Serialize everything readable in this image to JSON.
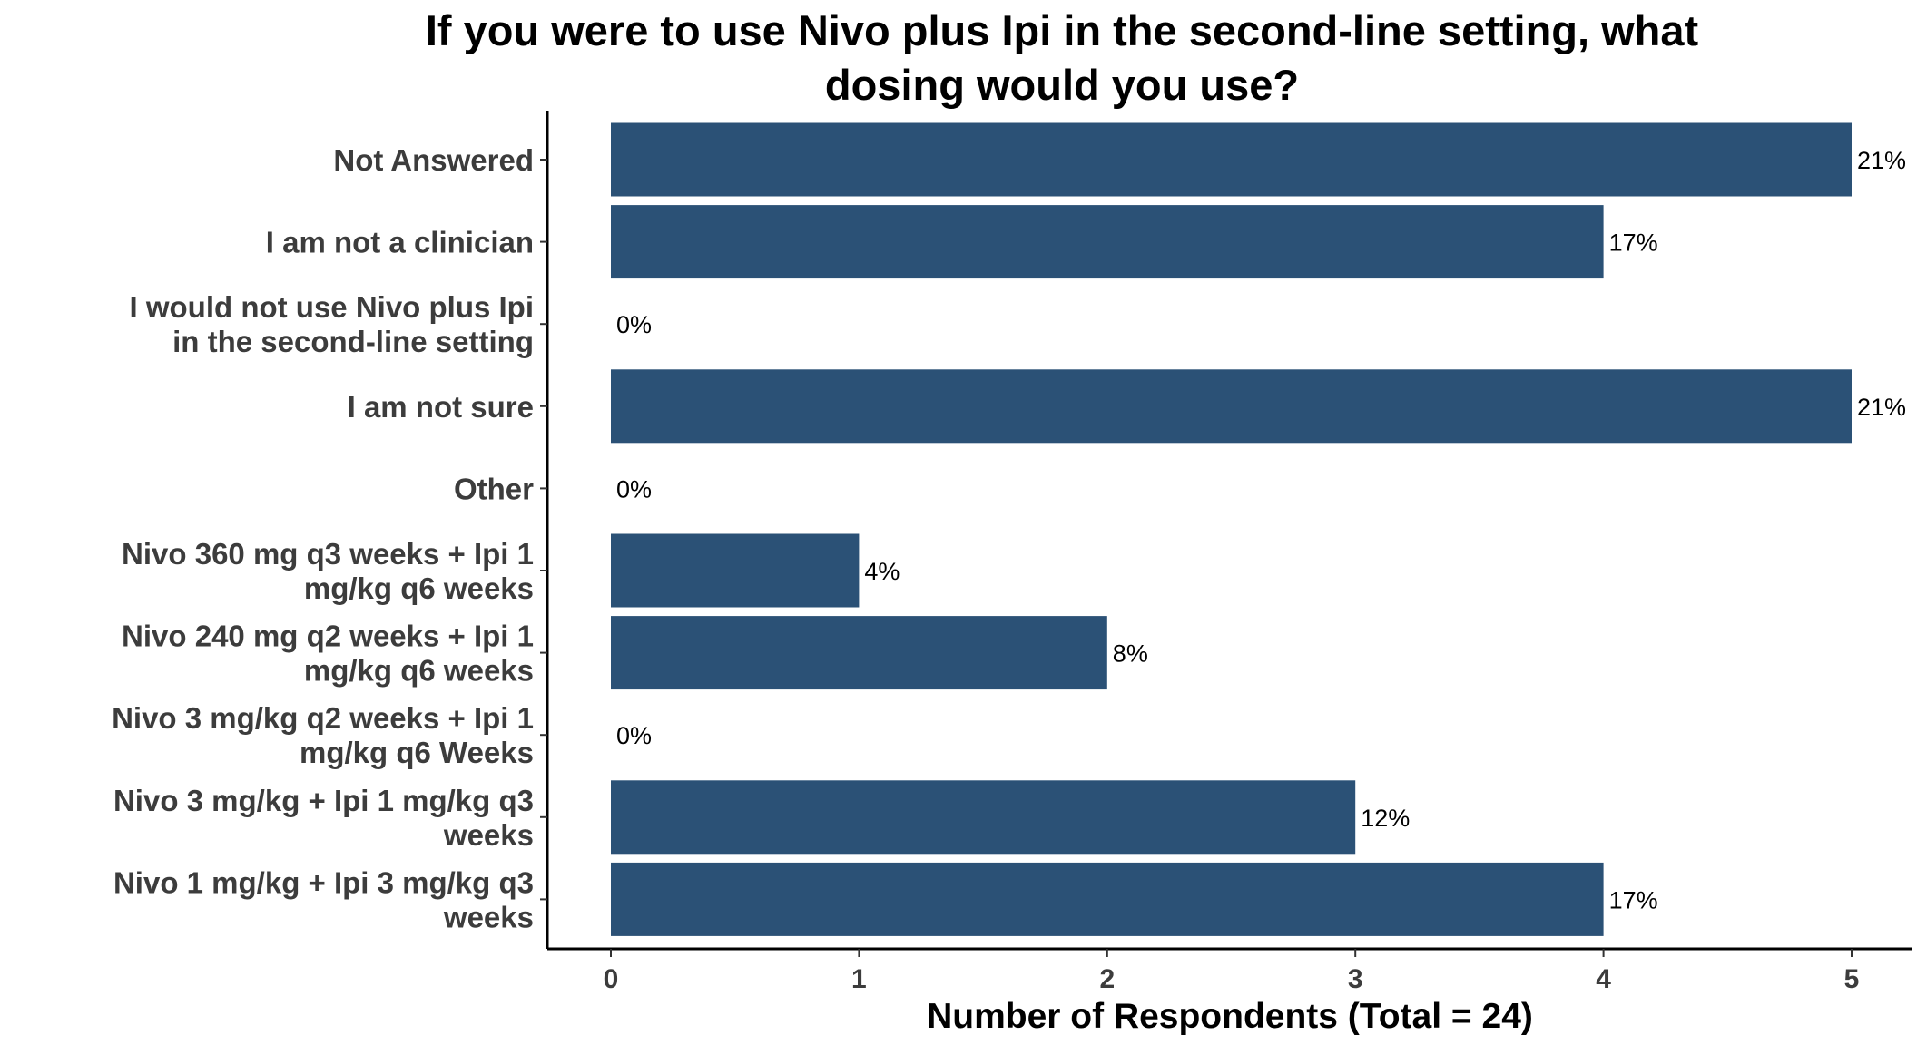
{
  "chart_data": {
    "type": "bar",
    "orientation": "horizontal",
    "title": "If you were to use Nivo plus Ipi in the second-line setting, what dosing would you use?",
    "title_lines": [
      "If you were to use Nivo plus Ipi in the second-line setting, what",
      "dosing would you use?"
    ],
    "xlabel": "Number of Respondents (Total = 24)",
    "ylabel": "",
    "xlim": [
      0,
      5
    ],
    "xticks": [
      "0",
      "1",
      "2",
      "3",
      "4",
      "5"
    ],
    "grid": false,
    "bar_color": "#2b5176",
    "categories": [
      {
        "lines": [
          "Not Answered"
        ],
        "value": 5,
        "label": "21%"
      },
      {
        "lines": [
          "I am not a clinician"
        ],
        "value": 4,
        "label": "17%"
      },
      {
        "lines": [
          "I would not use Nivo plus Ipi",
          "in the second-line setting"
        ],
        "value": 0,
        "label": "0%"
      },
      {
        "lines": [
          "I am not sure"
        ],
        "value": 5,
        "label": "21%"
      },
      {
        "lines": [
          "Other"
        ],
        "value": 0,
        "label": "0%"
      },
      {
        "lines": [
          "Nivo 360 mg q3 weeks + Ipi 1",
          "mg/kg q6 weeks"
        ],
        "value": 1,
        "label": "4%"
      },
      {
        "lines": [
          "Nivo 240 mg q2 weeks + Ipi 1",
          "mg/kg q6 weeks"
        ],
        "value": 2,
        "label": "8%"
      },
      {
        "lines": [
          "Nivo 3 mg/kg q2 weeks + Ipi 1",
          "mg/kg q6 Weeks"
        ],
        "value": 0,
        "label": "0%"
      },
      {
        "lines": [
          "Nivo 3 mg/kg + Ipi 1 mg/kg q3",
          "weeks"
        ],
        "value": 3,
        "label": "12%"
      },
      {
        "lines": [
          "Nivo 1 mg/kg + Ipi 3 mg/kg q3",
          "weeks"
        ],
        "value": 4,
        "label": "17%"
      }
    ]
  }
}
